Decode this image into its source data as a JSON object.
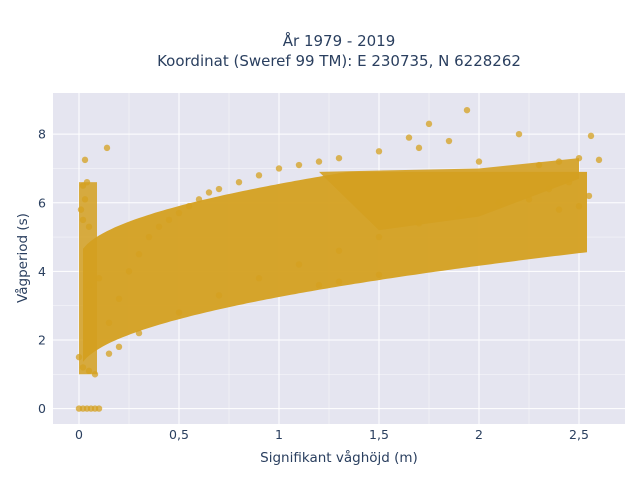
{
  "chart_data": {
    "type": "scatter",
    "title_lines": [
      "År 1979 - 2019",
      "Koordinat (Sweref 99 TM): E 230735, N 6228262"
    ],
    "xlabel": "Signifikant våghöjd (m)",
    "ylabel": "Vågperiod (s)",
    "xlim": [
      -0.13,
      2.73
    ],
    "ylim": [
      -0.45,
      9.2
    ],
    "x_ticks": [
      0,
      0.5,
      1,
      1.5,
      2,
      2.5
    ],
    "x_tick_labels": [
      "0",
      "0,5",
      "1",
      "1,5",
      "2",
      "2,5"
    ],
    "y_ticks": [
      0,
      2,
      4,
      6,
      8
    ],
    "y_tick_labels": [
      "0",
      "2",
      "4",
      "6",
      "8"
    ],
    "grid": true,
    "plot_bg": "#e5e5f0",
    "grid_color": "#ffffff",
    "marker_color": "#d4a020",
    "marker_opacity": 0.75,
    "points": [
      [
        0.0,
        0.0
      ],
      [
        0.02,
        0.0
      ],
      [
        0.04,
        0.0
      ],
      [
        0.06,
        0.0
      ],
      [
        0.08,
        0.0
      ],
      [
        0.1,
        0.0
      ],
      [
        0.02,
        6.5
      ],
      [
        0.03,
        6.1
      ],
      [
        0.01,
        5.8
      ],
      [
        0.04,
        6.6
      ],
      [
        0.02,
        5.5
      ],
      [
        0.05,
        5.3
      ],
      [
        0.03,
        7.25
      ],
      [
        0.14,
        7.6
      ],
      [
        0.0,
        1.5
      ],
      [
        0.02,
        1.2
      ],
      [
        0.05,
        1.1
      ],
      [
        0.08,
        1.0
      ],
      [
        0.05,
        3.6
      ],
      [
        0.1,
        3.8
      ],
      [
        0.15,
        2.5
      ],
      [
        0.2,
        3.2
      ],
      [
        0.25,
        4.0
      ],
      [
        0.3,
        4.5
      ],
      [
        0.35,
        5.0
      ],
      [
        0.4,
        5.3
      ],
      [
        0.45,
        5.5
      ],
      [
        0.5,
        5.7
      ],
      [
        0.55,
        5.9
      ],
      [
        0.6,
        6.1
      ],
      [
        0.65,
        6.3
      ],
      [
        0.7,
        6.4
      ],
      [
        0.8,
        6.6
      ],
      [
        0.9,
        6.8
      ],
      [
        1.0,
        7.0
      ],
      [
        1.1,
        7.1
      ],
      [
        1.2,
        7.2
      ],
      [
        1.3,
        7.3
      ],
      [
        1.5,
        7.5
      ],
      [
        1.65,
        7.9
      ],
      [
        1.7,
        7.6
      ],
      [
        1.75,
        8.3
      ],
      [
        1.85,
        7.8
      ],
      [
        1.94,
        8.7
      ],
      [
        2.0,
        7.2
      ],
      [
        2.2,
        8.0
      ],
      [
        2.3,
        7.1
      ],
      [
        2.4,
        7.2
      ],
      [
        2.5,
        7.3
      ],
      [
        2.56,
        7.95
      ],
      [
        2.6,
        7.25
      ],
      [
        2.55,
        6.2
      ],
      [
        2.45,
        6.6
      ],
      [
        2.35,
        6.4
      ],
      [
        2.25,
        6.1
      ],
      [
        2.1,
        6.0
      ],
      [
        1.9,
        5.8
      ],
      [
        1.7,
        5.4
      ],
      [
        1.5,
        5.0
      ],
      [
        1.3,
        4.6
      ],
      [
        1.1,
        4.2
      ],
      [
        0.9,
        3.8
      ],
      [
        0.7,
        3.3
      ],
      [
        0.5,
        2.8
      ],
      [
        0.3,
        2.2
      ],
      [
        0.2,
        1.8
      ],
      [
        0.15,
        1.6
      ],
      [
        1.5,
        3.9
      ],
      [
        1.3,
        3.7
      ],
      [
        1.2,
        3.6
      ],
      [
        2.5,
        5.9
      ],
      [
        2.4,
        5.8
      ]
    ]
  }
}
